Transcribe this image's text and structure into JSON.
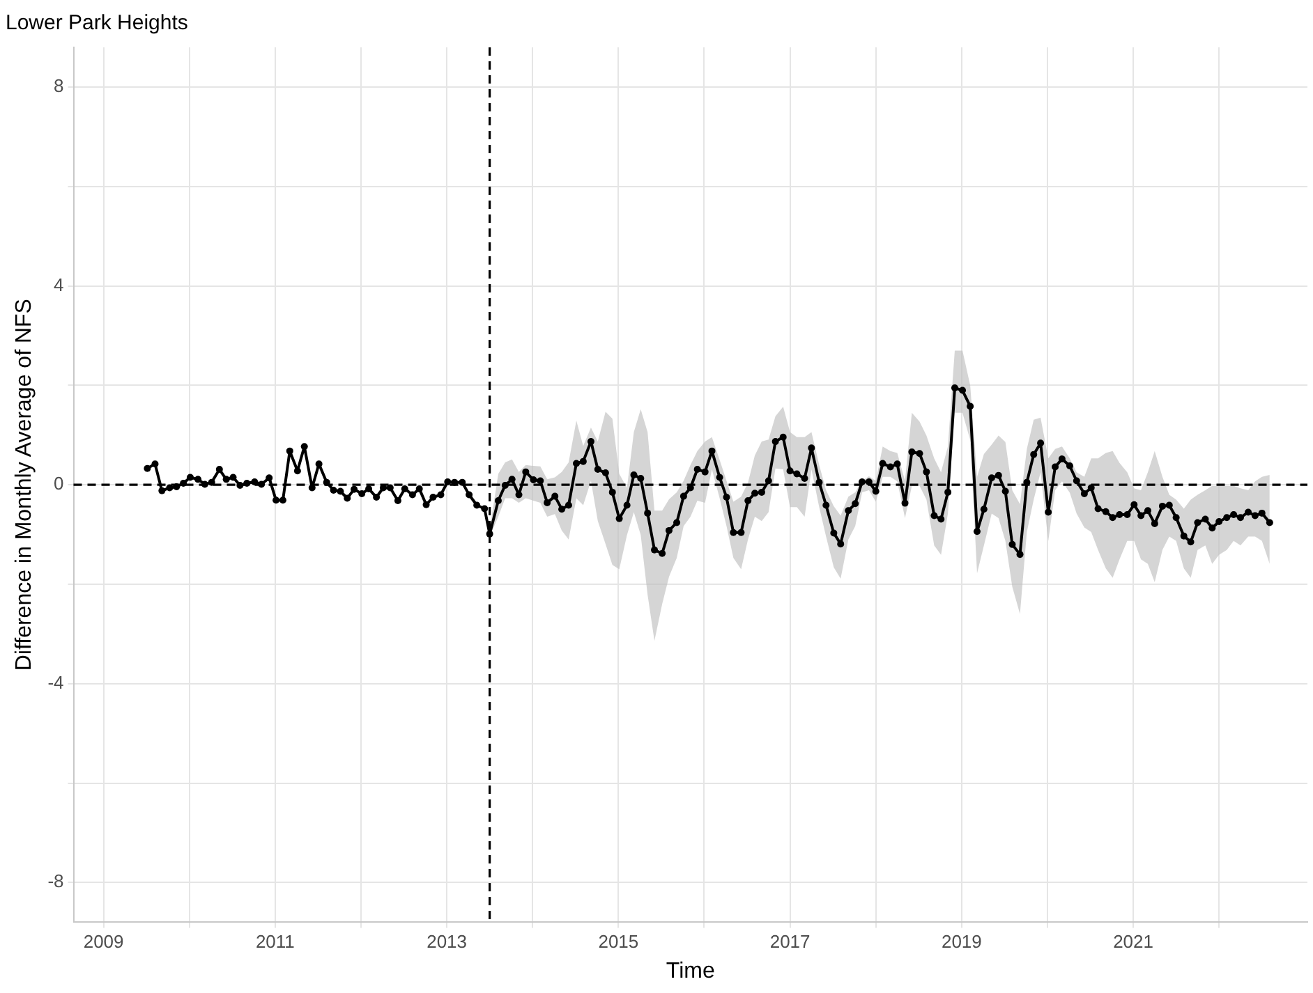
{
  "chart_data": {
    "type": "line",
    "title": "Lower Park Heights",
    "xlabel": "Time",
    "ylabel": "Difference in Monthly Average of NFS",
    "xlim": [
      2008.65,
      2023.03
    ],
    "ylim": [
      -8.8,
      8.8
    ],
    "xticks": [
      2009,
      {
        "value": 2010,
        "label": null
      },
      2011,
      {
        "value": 2012,
        "label": null
      },
      2013,
      {
        "value": 2014,
        "label": null
      },
      2015,
      {
        "value": 2016,
        "label": null
      },
      2017,
      {
        "value": 2018,
        "label": null
      },
      2019,
      {
        "value": 2020,
        "label": null
      },
      2021,
      {
        "value": 2022,
        "label": null
      }
    ],
    "yticks": [
      -8,
      {
        "value": -6,
        "label": null
      },
      -4,
      {
        "value": -2,
        "label": null
      },
      0,
      {
        "value": 2,
        "label": null
      },
      4,
      {
        "value": 6,
        "label": null
      },
      8
    ],
    "grid": true,
    "legend": false,
    "marker": "circle",
    "line_style": "solid",
    "ref_lines": [
      {
        "axis": "x",
        "value": 2013.5,
        "line_style": "dashed",
        "color": "#000000"
      },
      {
        "axis": "y",
        "value": 0,
        "line_style": "dashed",
        "color": "#000000"
      }
    ],
    "series": [
      {
        "color": "#000000",
        "x": [
          2009.51,
          2009.6,
          2009.68,
          2009.77,
          2009.85,
          2009.93,
          2010.01,
          2010.1,
          2010.18,
          2010.26,
          2010.35,
          2010.43,
          2010.51,
          2010.59,
          2010.67,
          2010.76,
          2010.84,
          2010.93,
          2011.01,
          2011.09,
          2011.17,
          2011.26,
          2011.34,
          2011.43,
          2011.51,
          2011.6,
          2011.68,
          2011.76,
          2011.84,
          2011.92,
          2012.01,
          2012.09,
          2012.18,
          2012.26,
          2012.34,
          2012.43,
          2012.51,
          2012.6,
          2012.68,
          2012.76,
          2012.84,
          2012.93,
          2013.01,
          2013.09,
          2013.18,
          2013.26,
          2013.35,
          2013.44,
          2013.5,
          2013.6,
          2013.68,
          2013.76,
          2013.84,
          2013.92,
          2014.01,
          2014.09,
          2014.17,
          2014.26,
          2014.34,
          2014.42,
          2014.51,
          2014.59,
          2014.68,
          2014.76,
          2014.85,
          2014.93,
          2015.01,
          2015.1,
          2015.18,
          2015.26,
          2015.34,
          2015.42,
          2015.51,
          2015.59,
          2015.68,
          2015.76,
          2015.84,
          2015.92,
          2016.01,
          2016.09,
          2016.18,
          2016.26,
          2016.34,
          2016.43,
          2016.51,
          2016.59,
          2016.67,
          2016.75,
          2016.83,
          2016.92,
          2017.0,
          2017.08,
          2017.17,
          2017.25,
          2017.34,
          2017.42,
          2017.51,
          2017.59,
          2017.68,
          2017.76,
          2017.84,
          2017.92,
          2018.0,
          2018.08,
          2018.17,
          2018.25,
          2018.34,
          2018.42,
          2018.51,
          2018.59,
          2018.68,
          2018.76,
          2018.84,
          2018.92,
          2019.01,
          2019.1,
          2019.18,
          2019.26,
          2019.35,
          2019.43,
          2019.51,
          2019.59,
          2019.68,
          2019.76,
          2019.84,
          2019.92,
          2020.01,
          2020.09,
          2020.17,
          2020.26,
          2020.34,
          2020.43,
          2020.51,
          2020.59,
          2020.68,
          2020.76,
          2020.84,
          2020.93,
          2021.01,
          2021.09,
          2021.17,
          2021.25,
          2021.34,
          2021.42,
          2021.5,
          2021.59,
          2021.67,
          2021.75,
          2021.84,
          2021.92,
          2022.0,
          2022.09,
          2022.17,
          2022.25,
          2022.34,
          2022.42,
          2022.5,
          2022.59
        ],
        "values": [
          0.33,
          0.42,
          -0.12,
          -0.06,
          -0.04,
          0.03,
          0.15,
          0.11,
          0.01,
          0.05,
          0.31,
          0.11,
          0.15,
          -0.01,
          0.03,
          0.06,
          0.01,
          0.14,
          -0.31,
          -0.31,
          0.68,
          0.28,
          0.77,
          -0.06,
          0.42,
          0.05,
          -0.11,
          -0.13,
          -0.27,
          -0.09,
          -0.18,
          -0.08,
          -0.25,
          -0.06,
          -0.06,
          -0.32,
          -0.08,
          -0.2,
          -0.08,
          -0.4,
          -0.25,
          -0.2,
          0.06,
          0.05,
          0.05,
          -0.2,
          -0.41,
          -0.48,
          -0.99,
          -0.32,
          -0.01,
          0.11,
          -0.2,
          0.26,
          0.1,
          0.08,
          -0.36,
          -0.23,
          -0.49,
          -0.41,
          0.43,
          0.47,
          0.87,
          0.31,
          0.24,
          -0.15,
          -0.68,
          -0.41,
          0.2,
          0.13,
          -0.57,
          -1.31,
          -1.38,
          -0.92,
          -0.76,
          -0.23,
          -0.06,
          0.31,
          0.26,
          0.68,
          0.15,
          -0.25,
          -0.96,
          -0.96,
          -0.32,
          -0.17,
          -0.15,
          0.08,
          0.87,
          0.96,
          0.28,
          0.22,
          0.13,
          0.74,
          0.05,
          -0.41,
          -0.97,
          -1.19,
          -0.52,
          -0.38,
          0.06,
          0.06,
          -0.13,
          0.43,
          0.36,
          0.42,
          -0.37,
          0.66,
          0.63,
          0.26,
          -0.62,
          -0.69,
          -0.15,
          1.95,
          1.9,
          1.58,
          -0.94,
          -0.49,
          0.14,
          0.19,
          -0.13,
          -1.2,
          -1.4,
          0.05,
          0.61,
          0.84,
          -0.55,
          0.36,
          0.52,
          0.38,
          0.08,
          -0.18,
          -0.06,
          -0.48,
          -0.54,
          -0.66,
          -0.6,
          -0.6,
          -0.4,
          -0.62,
          -0.52,
          -0.78,
          -0.43,
          -0.41,
          -0.66,
          -1.03,
          -1.15,
          -0.76,
          -0.69,
          -0.87,
          -0.74,
          -0.66,
          -0.6,
          -0.66,
          -0.55,
          -0.62,
          -0.57,
          -0.76
        ],
        "upper": [
          null,
          null,
          null,
          null,
          null,
          null,
          null,
          null,
          null,
          null,
          null,
          null,
          null,
          null,
          null,
          null,
          null,
          null,
          null,
          null,
          null,
          null,
          null,
          null,
          null,
          null,
          null,
          null,
          null,
          null,
          null,
          null,
          null,
          null,
          null,
          null,
          null,
          null,
          null,
          null,
          null,
          null,
          null,
          null,
          null,
          null,
          null,
          null,
          -0.9,
          0.22,
          0.45,
          0.51,
          0.26,
          0.4,
          0.38,
          0.37,
          0.11,
          0.15,
          0.26,
          0.45,
          1.29,
          0.78,
          1.15,
          0.87,
          1.47,
          1.33,
          0.22,
          -0.06,
          1.06,
          1.52,
          1.06,
          -0.52,
          -0.52,
          -0.29,
          -0.15,
          0.08,
          0.4,
          0.68,
          0.87,
          0.96,
          0.5,
          0.08,
          -0.34,
          -0.24,
          0.04,
          0.59,
          0.87,
          0.91,
          1.38,
          1.57,
          1.06,
          0.96,
          0.96,
          1.06,
          0.4,
          -0.11,
          -0.43,
          -0.62,
          -0.24,
          -0.15,
          0.08,
          0.17,
          0.08,
          0.77,
          0.68,
          0.64,
          0.08,
          1.45,
          1.27,
          0.99,
          0.53,
          0.25,
          0.77,
          2.7,
          2.7,
          2.0,
          0.16,
          0.62,
          0.81,
          0.99,
          0.86,
          -0.11,
          -0.39,
          0.72,
          1.31,
          1.35,
          0.53,
          0.72,
          0.77,
          0.53,
          0.25,
          0.16,
          0.53,
          0.53,
          0.64,
          0.68,
          0.44,
          0.25,
          -0.07,
          -0.11,
          0.25,
          0.68,
          0.16,
          -0.2,
          -0.3,
          -0.48,
          -0.3,
          -0.2,
          -0.11,
          -0.02,
          -0.02,
          -0.02,
          -0.02,
          -0.07,
          -0.11,
          0.07,
          0.16,
          0.2
        ],
        "lower": [
          null,
          null,
          null,
          null,
          null,
          null,
          null,
          null,
          null,
          null,
          null,
          null,
          null,
          null,
          null,
          null,
          null,
          null,
          null,
          null,
          null,
          null,
          null,
          null,
          null,
          null,
          null,
          null,
          null,
          null,
          null,
          null,
          null,
          null,
          null,
          null,
          null,
          null,
          null,
          null,
          null,
          null,
          null,
          null,
          null,
          null,
          null,
          null,
          -1.04,
          -0.64,
          -0.27,
          -0.27,
          -0.36,
          -0.27,
          -0.32,
          -0.36,
          -0.64,
          -0.59,
          -0.92,
          -1.1,
          -0.27,
          -0.41,
          0.08,
          -0.73,
          -1.19,
          -1.61,
          -1.7,
          -1.01,
          -0.55,
          -1.01,
          -2.21,
          -3.14,
          -2.4,
          -1.85,
          -1.47,
          -0.83,
          -0.64,
          -0.32,
          -0.36,
          0.31,
          -0.27,
          -0.83,
          -1.47,
          -1.7,
          -1.1,
          -0.64,
          -0.73,
          -0.55,
          0.33,
          0.31,
          -0.45,
          -0.45,
          -0.64,
          0.31,
          -0.45,
          -1.04,
          -1.66,
          -1.89,
          -1.1,
          -0.83,
          -0.15,
          -0.11,
          -0.34,
          0.16,
          0.16,
          0.07,
          -0.67,
          -0.02,
          -0.02,
          -0.3,
          -1.22,
          -1.41,
          -0.58,
          1.45,
          1.45,
          0.9,
          -1.78,
          -1.22,
          -0.58,
          -0.67,
          -1.13,
          -2.05,
          -2.6,
          -0.95,
          -0.3,
          0.25,
          -1.13,
          -0.11,
          0.07,
          -0.16,
          -0.58,
          -0.86,
          -0.95,
          -1.31,
          -1.68,
          -1.87,
          -1.5,
          -1.13,
          -1.13,
          -1.5,
          -1.59,
          -1.96,
          -1.31,
          -1.04,
          -1.13,
          -1.68,
          -1.87,
          -1.31,
          -1.22,
          -1.59,
          -1.41,
          -1.31,
          -1.13,
          -1.22,
          -1.04,
          -1.04,
          -1.13,
          -1.59
        ]
      }
    ]
  }
}
